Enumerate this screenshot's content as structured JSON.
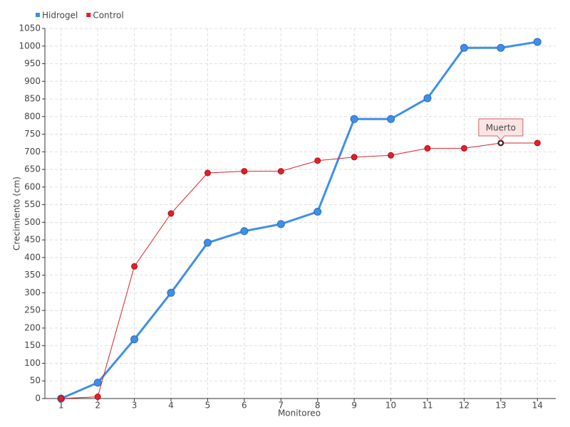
{
  "chart_data": {
    "type": "line",
    "x_label": "Monitoreo",
    "y_label": "Crecimiento (cm)",
    "categories": [
      "1",
      "2",
      "3",
      "4",
      "5",
      "6",
      "7",
      "8",
      "9",
      "10",
      "11",
      "12",
      "13",
      "14"
    ],
    "series": [
      {
        "name": "Hidrogel",
        "color": "#3f8fea",
        "values": [
          0,
          45,
          168,
          300,
          442,
          475,
          495,
          530,
          793,
          793,
          852,
          995,
          995,
          1012
        ]
      },
      {
        "name": "Control",
        "color": "#e0202a",
        "values": [
          0,
          5,
          375,
          525,
          640,
          645,
          645,
          675,
          685,
          690,
          710,
          710,
          725,
          725
        ]
      }
    ],
    "annotations": [
      {
        "text": "Muerto",
        "x": "13",
        "y": 725
      }
    ],
    "ylim": [
      0,
      1050
    ],
    "yticks": [
      0,
      50,
      100,
      150,
      200,
      250,
      300,
      350,
      400,
      450,
      500,
      550,
      600,
      650,
      700,
      750,
      800,
      850,
      900,
      950,
      1000,
      1050
    ],
    "grid": true,
    "legend": "top-left"
  }
}
